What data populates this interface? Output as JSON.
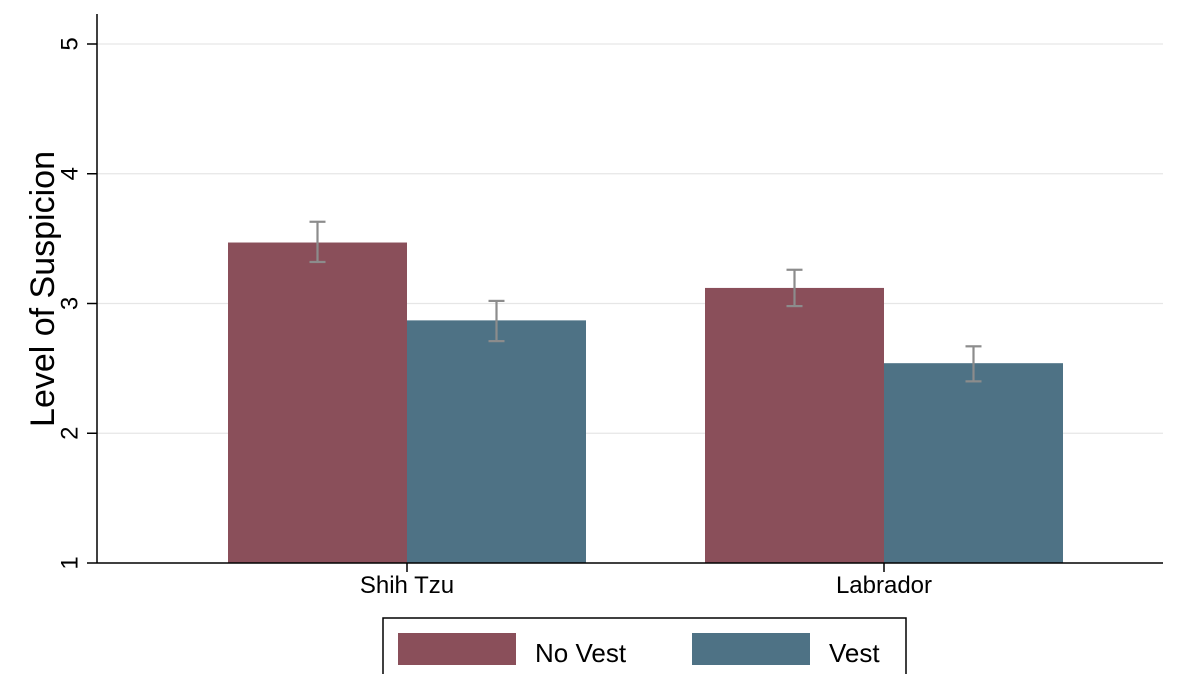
{
  "chart_data": {
    "type": "bar",
    "ylabel": "Level of Suspicion",
    "xlabel": "",
    "ylim": [
      1,
      5
    ],
    "yticks": [
      1,
      2,
      3,
      4,
      5
    ],
    "grid": true,
    "legend": "bottom",
    "categories": [
      "Shih Tzu",
      "Labrador"
    ],
    "series": [
      {
        "name": "No Vest",
        "color": "#8a4f5a",
        "values": [
          3.47,
          3.12
        ],
        "error_low": [
          3.32,
          2.98
        ],
        "error_high": [
          3.63,
          3.26
        ]
      },
      {
        "name": "Vest",
        "color": "#4e7285",
        "values": [
          2.87,
          2.54
        ],
        "error_low": [
          2.71,
          2.4
        ],
        "error_high": [
          3.02,
          2.67
        ]
      }
    ]
  }
}
